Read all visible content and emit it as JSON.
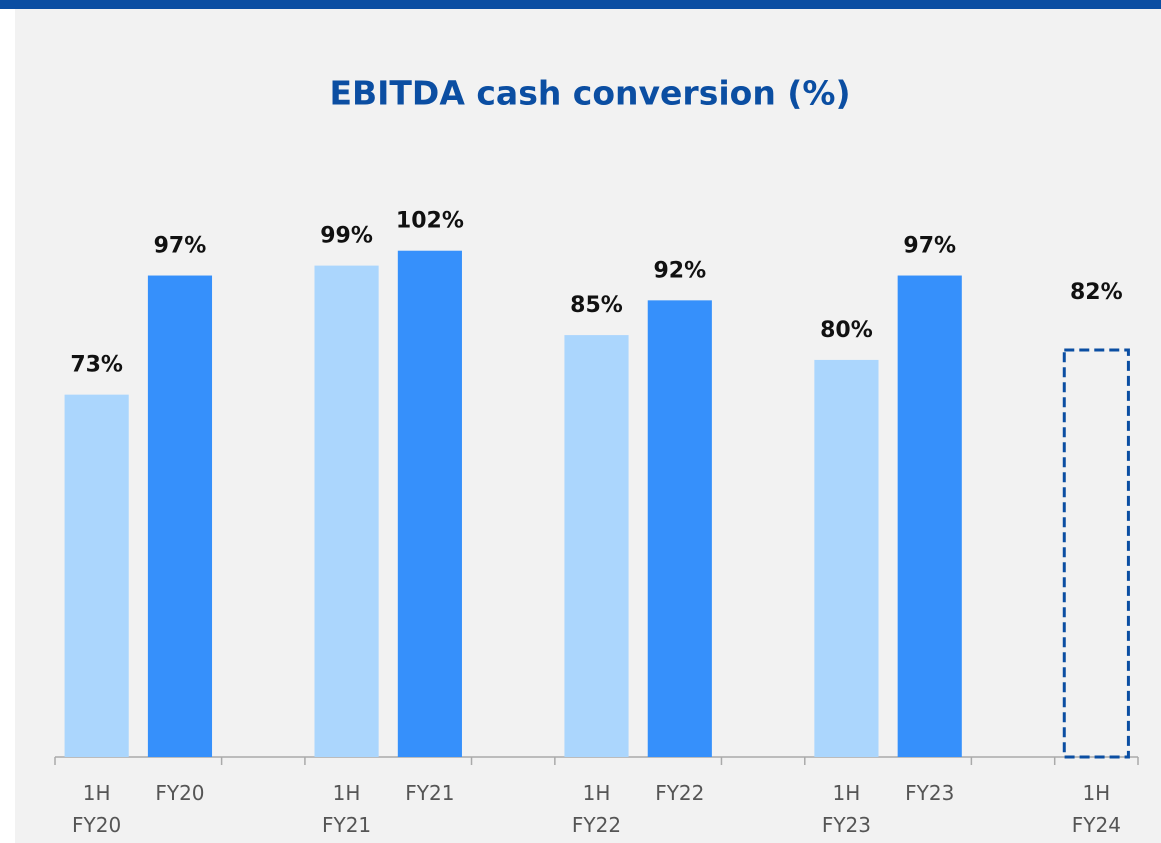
{
  "chart_data": {
    "type": "bar",
    "title": "EBITDA cash conversion (%)",
    "categories": [
      "1H FY20",
      "FY20",
      null,
      "1H FY21",
      "FY21",
      null,
      "1H FY22",
      "FY22",
      null,
      "1H FY23",
      "FY23",
      null,
      "1H FY24"
    ],
    "values": [
      73,
      97,
      null,
      99,
      102,
      null,
      85,
      92,
      null,
      80,
      97,
      null,
      82
    ],
    "value_labels": [
      "73%",
      "97%",
      null,
      "99%",
      "102%",
      null,
      "85%",
      "92%",
      null,
      "80%",
      "97%",
      null,
      "82%"
    ],
    "colors": [
      "#abd6fd",
      "#3690fb",
      null,
      "#abd6fd",
      "#3690fb",
      null,
      "#abd6fd",
      "#3690fb",
      null,
      "#abd6fd",
      "#3690fb",
      null,
      "#0b4ea2"
    ],
    "dashed": [
      false,
      false,
      false,
      false,
      false,
      false,
      false,
      false,
      false,
      false,
      false,
      false,
      true
    ],
    "ylim": [
      0,
      110
    ]
  }
}
